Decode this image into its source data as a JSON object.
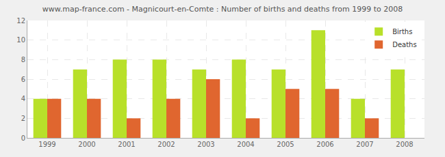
{
  "chart_data": {
    "type": "bar",
    "title": "www.map-france.com - Magnicourt-en-Comte : Number of births and deaths from 1999 to 2008",
    "categories": [
      "1999",
      "2000",
      "2001",
      "2002",
      "2003",
      "2004",
      "2005",
      "2006",
      "2007",
      "2008"
    ],
    "series": [
      {
        "name": "Births",
        "color": "#b8e02a",
        "values": [
          4,
          7,
          8,
          8,
          7,
          8,
          7,
          11,
          4,
          7
        ]
      },
      {
        "name": "Deaths",
        "color": "#e0662f",
        "values": [
          4,
          4,
          2,
          4,
          6,
          2,
          5,
          5,
          2,
          0
        ]
      }
    ],
    "ylim": [
      0,
      12
    ],
    "yticks": [
      0,
      2,
      4,
      6,
      8,
      10,
      12
    ],
    "grid": true,
    "legend": "top-right"
  }
}
